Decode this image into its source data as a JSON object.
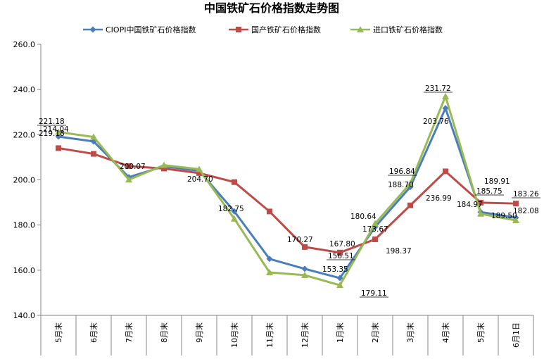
{
  "chart_data": {
    "type": "line",
    "title": "中国铁矿石价格指数走势图",
    "xlabel": "",
    "ylabel": "",
    "categories": [
      "5月末",
      "6月末",
      "7月末",
      "8月末",
      "9月末",
      "10月末",
      "11月末",
      "12月末",
      "1月末",
      "2月末",
      "3月末",
      "4月末",
      "5月末",
      "6月1日"
    ],
    "ylim": [
      140,
      260
    ],
    "yticks": [
      "140.0",
      "160.0",
      "180.0",
      "200.0",
      "220.0",
      "240.0",
      "260.0"
    ],
    "grid": false,
    "legend": "top",
    "series": [
      {
        "name": "CIOPI中国铁矿石价格指数",
        "color": "#4a7ebb",
        "marker": "diamond",
        "values": [
          219.18,
          217.0,
          201.2,
          206.0,
          204.0,
          186.0,
          165.0,
          160.6,
          156.51,
          179.11,
          196.84,
          231.72,
          185.75,
          183.26
        ]
      },
      {
        "name": "国产铁矿石价格指数",
        "color": "#be4b48",
        "marker": "square",
        "values": [
          214.04,
          211.5,
          206.07,
          205.0,
          203.0,
          199.0,
          186.0,
          170.27,
          167.8,
          173.67,
          188.7,
          203.76,
          189.91,
          189.5
        ]
      },
      {
        "name": "进口铁矿石价格指数",
        "color": "#98b954",
        "marker": "triangle",
        "values": [
          221.18,
          219.0,
          200.07,
          206.5,
          204.7,
          182.75,
          159.0,
          157.8,
          153.35,
          180.64,
          198.37,
          236.99,
          184.97,
          182.08
        ]
      }
    ],
    "data_labels": [
      {
        "text": "221.18",
        "category_index": 0,
        "value": 221.18,
        "underline": true
      },
      {
        "text": "219.18",
        "category_index": 0,
        "value": 219.18
      },
      {
        "text": "214.04",
        "category_index": 0,
        "value": 214.04
      },
      {
        "text": "200.07",
        "category_index": 2,
        "value": 200.07
      },
      {
        "text": "204.70",
        "category_index": 4,
        "value": 204.7
      },
      {
        "text": "182.75",
        "category_index": 5,
        "value": 182.75
      },
      {
        "text": "170.27",
        "category_index": 7,
        "value": 170.27
      },
      {
        "text": "167.80",
        "category_index": 8,
        "value": 167.8
      },
      {
        "text": "156.51",
        "category_index": 8,
        "value": 156.51,
        "underline": true
      },
      {
        "text": "153.35",
        "category_index": 8,
        "value": 153.35
      },
      {
        "text": "179.11",
        "category_index": 9,
        "value": 179.11,
        "underline": true
      },
      {
        "text": "180.64",
        "category_index": 9,
        "value": 180.64
      },
      {
        "text": "173.67",
        "category_index": 9,
        "value": 173.67
      },
      {
        "text": "198.37",
        "category_index": 10,
        "value": 198.37
      },
      {
        "text": "196.84",
        "category_index": 10,
        "value": 196.84,
        "underline": true
      },
      {
        "text": "188.70",
        "category_index": 10,
        "value": 188.7
      },
      {
        "text": "236.99",
        "category_index": 11,
        "value": 236.99
      },
      {
        "text": "231.72",
        "category_index": 11,
        "value": 231.72,
        "underline": true
      },
      {
        "text": "203.76",
        "category_index": 11,
        "value": 203.76
      },
      {
        "text": "189.91",
        "category_index": 12,
        "value": 189.91
      },
      {
        "text": "185.75",
        "category_index": 12,
        "value": 185.75,
        "underline": true
      },
      {
        "text": "184.97",
        "category_index": 12,
        "value": 184.97
      },
      {
        "text": "189.50",
        "category_index": 13,
        "value": 189.5
      },
      {
        "text": "183.26",
        "category_index": 13,
        "value": 183.26,
        "underline": true
      },
      {
        "text": "182.08",
        "category_index": 13,
        "value": 182.08
      }
    ]
  }
}
